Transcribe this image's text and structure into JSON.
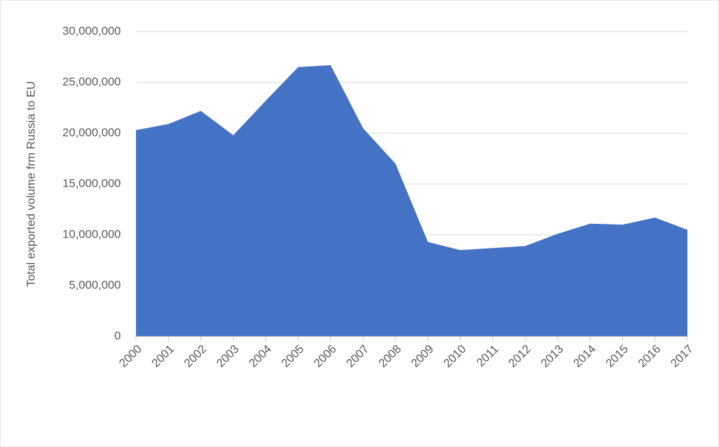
{
  "chart_data": {
    "type": "area",
    "y_label": "Total exported volume frm Russia to EU",
    "categories": [
      "2000",
      "2001",
      "2002",
      "2003",
      "2004",
      "2005",
      "2006",
      "2007",
      "2008",
      "2009",
      "2010",
      "2011",
      "2012",
      "2013",
      "2014",
      "2015",
      "2016",
      "2017"
    ],
    "values": [
      20300000,
      20900000,
      22200000,
      19800000,
      23200000,
      26500000,
      26700000,
      20500000,
      17000000,
      9300000,
      8500000,
      8700000,
      8900000,
      10100000,
      11100000,
      11000000,
      11700000,
      10500000
    ],
    "color": "#4472c4",
    "ylim": [
      0,
      30000000
    ],
    "yticks": [
      0,
      {
        "value": 5000000,
        "label": "5,000,000"
      },
      {
        "value": 10000000,
        "label": "10,000,000"
      },
      {
        "value": 15000000,
        "label": "15,000,000"
      },
      {
        "value": 20000000,
        "label": "20,000,000"
      },
      {
        "value": 25000000,
        "label": "25,000,000"
      },
      {
        "value": 30000000,
        "label": "30,000,000"
      }
    ],
    "grid": true
  }
}
